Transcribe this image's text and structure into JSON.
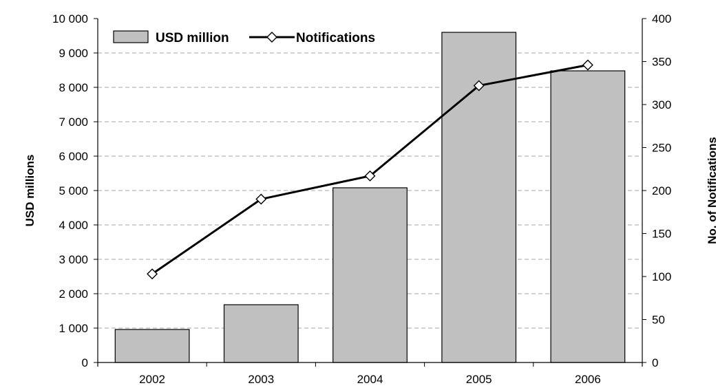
{
  "chart_data": {
    "type": "bar",
    "categories": [
      "2002",
      "2003",
      "2004",
      "2005",
      "2006"
    ],
    "series": [
      {
        "name": "USD million",
        "type": "bar",
        "axis": "left",
        "values": [
          960,
          1680,
          5080,
          9600,
          8480
        ],
        "color": "#c0c0c0"
      },
      {
        "name": "Notifications",
        "type": "line",
        "axis": "right",
        "values": [
          103,
          190,
          217,
          322,
          346
        ],
        "color": "#000000"
      }
    ],
    "ylabel": "USD millions",
    "y2label": "No. of Notifications",
    "ylim": [
      0,
      10000
    ],
    "y2lim": [
      0,
      400
    ],
    "yticks": [
      "0",
      "1 000",
      "2 000",
      "3 000",
      "4 000",
      "5 000",
      "6 000",
      "7 000",
      "8 000",
      "9 000",
      "10 000"
    ],
    "y2ticks": [
      "0",
      "50",
      "100",
      "150",
      "200",
      "250",
      "300",
      "350",
      "400"
    ],
    "grid": true,
    "legend_position": "top-left"
  }
}
